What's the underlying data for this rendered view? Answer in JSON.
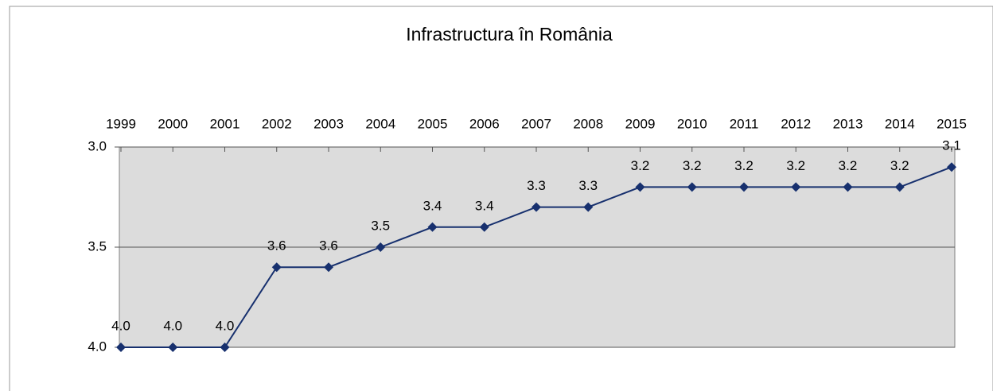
{
  "chart_data": {
    "type": "line",
    "title": "Infrastructura în România",
    "categories": [
      "1999",
      "2000",
      "2001",
      "2002",
      "2003",
      "2004",
      "2005",
      "2006",
      "2007",
      "2008",
      "2009",
      "2010",
      "2011",
      "2012",
      "2013",
      "2014",
      "2015"
    ],
    "series": [
      {
        "name": "Infrastructura",
        "color": "#17306e",
        "values": [
          4.0,
          4.0,
          4.0,
          3.6,
          3.6,
          3.5,
          3.4,
          3.4,
          3.3,
          3.3,
          3.2,
          3.2,
          3.2,
          3.2,
          3.2,
          3.2,
          3.1
        ],
        "value_labels": [
          "4.0",
          "4.0",
          "4.0",
          "3.6",
          "3.6",
          "3.5",
          "3.4",
          "3.4",
          "3.3",
          "3.3",
          "3.2",
          "3.2",
          "3.2",
          "3.2",
          "3.2",
          "3.2",
          "3.1"
        ]
      }
    ],
    "ylim": [
      3,
      4
    ],
    "y_inverted": true,
    "yticks": [
      {
        "value": 3,
        "label": "3.0"
      },
      {
        "value": 3.5,
        "label": "3.5"
      },
      {
        "value": 4,
        "label": "4.0"
      }
    ],
    "grid": true,
    "x_axis_position": "top",
    "plot_background": "#dcdcdc"
  }
}
